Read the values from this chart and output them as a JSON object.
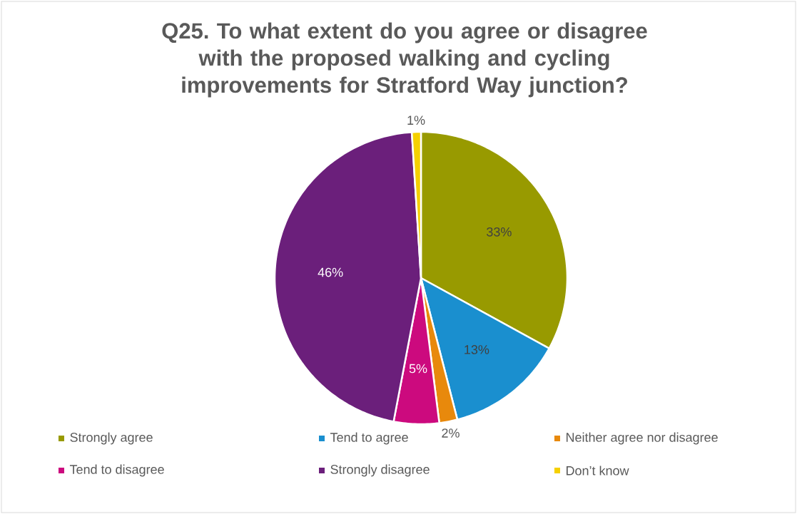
{
  "chart_data": {
    "type": "pie",
    "title": "Q25. To what extent do you agree or disagree with the proposed walking and cycling improvements for Stratford Way junction?",
    "categories": [
      "Strongly agree",
      "Tend to agree",
      "Neither agree nor disagree",
      "Tend to disagree",
      "Strongly disagree",
      "Don’t know"
    ],
    "values": [
      33,
      13,
      2,
      5,
      46,
      1
    ],
    "value_labels": [
      "33%",
      "13%",
      "2%",
      "5%",
      "46%",
      "1%"
    ],
    "colors": [
      "#989a00",
      "#1a8fcf",
      "#e8890c",
      "#cc0a7e",
      "#6b1f7b",
      "#f5d000"
    ],
    "legend": "bottom"
  }
}
